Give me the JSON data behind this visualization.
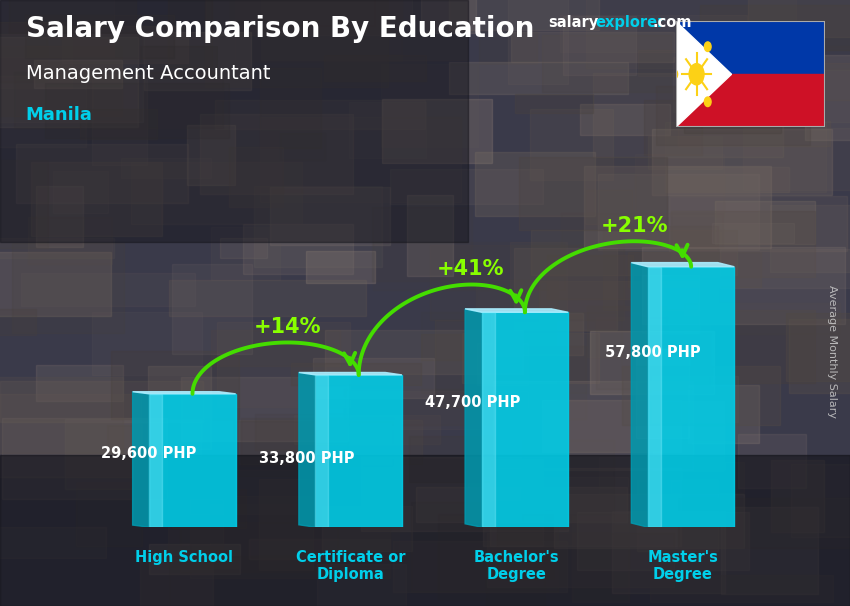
{
  "title_line1": "Salary Comparison By Education",
  "subtitle": "Management Accountant",
  "city": "Manila",
  "ylabel": "Average Monthly Salary",
  "categories": [
    "High School",
    "Certificate or\nDiploma",
    "Bachelor's\nDegree",
    "Master's\nDegree"
  ],
  "values": [
    29600,
    33800,
    47700,
    57800
  ],
  "labels": [
    "29,600 PHP",
    "33,800 PHP",
    "47,700 PHP",
    "57,800 PHP"
  ],
  "pct_changes": [
    "+14%",
    "+41%",
    "+21%"
  ],
  "bar_face_color": "#00cfea",
  "bar_left_color": "#009ab0",
  "bar_top_color": "#aaeeff",
  "title_color": "#ffffff",
  "subtitle_color": "#ffffff",
  "city_color": "#00cfea",
  "label_color": "#ffffff",
  "pct_color": "#88ff00",
  "arrow_color": "#44dd00",
  "xlabel_color": "#00cfea",
  "ylabel_color": "#cccccc",
  "bg_color": "#2b2b3a",
  "salary_color": "#ffffff",
  "explorer_color": "#00cfea",
  "com_color": "#ffffff"
}
